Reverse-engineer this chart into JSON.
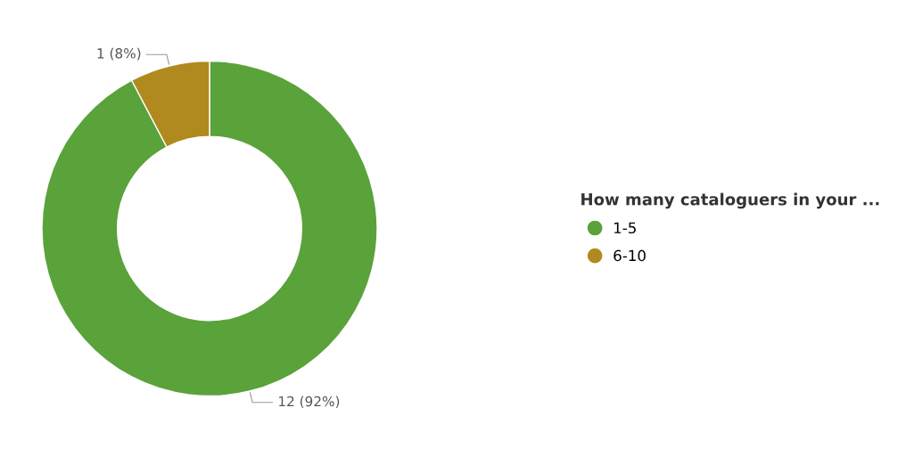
{
  "chart_data": {
    "type": "donut",
    "legend_title": "How many cataloguers in your ...",
    "categories": [
      "1-5",
      "6-10"
    ],
    "values": [
      12,
      1
    ],
    "colors": [
      "#5aa23a",
      "#b08a1e"
    ],
    "value_labels": [
      "12 (92%)",
      "1 (8%)"
    ],
    "legend": "right"
  }
}
